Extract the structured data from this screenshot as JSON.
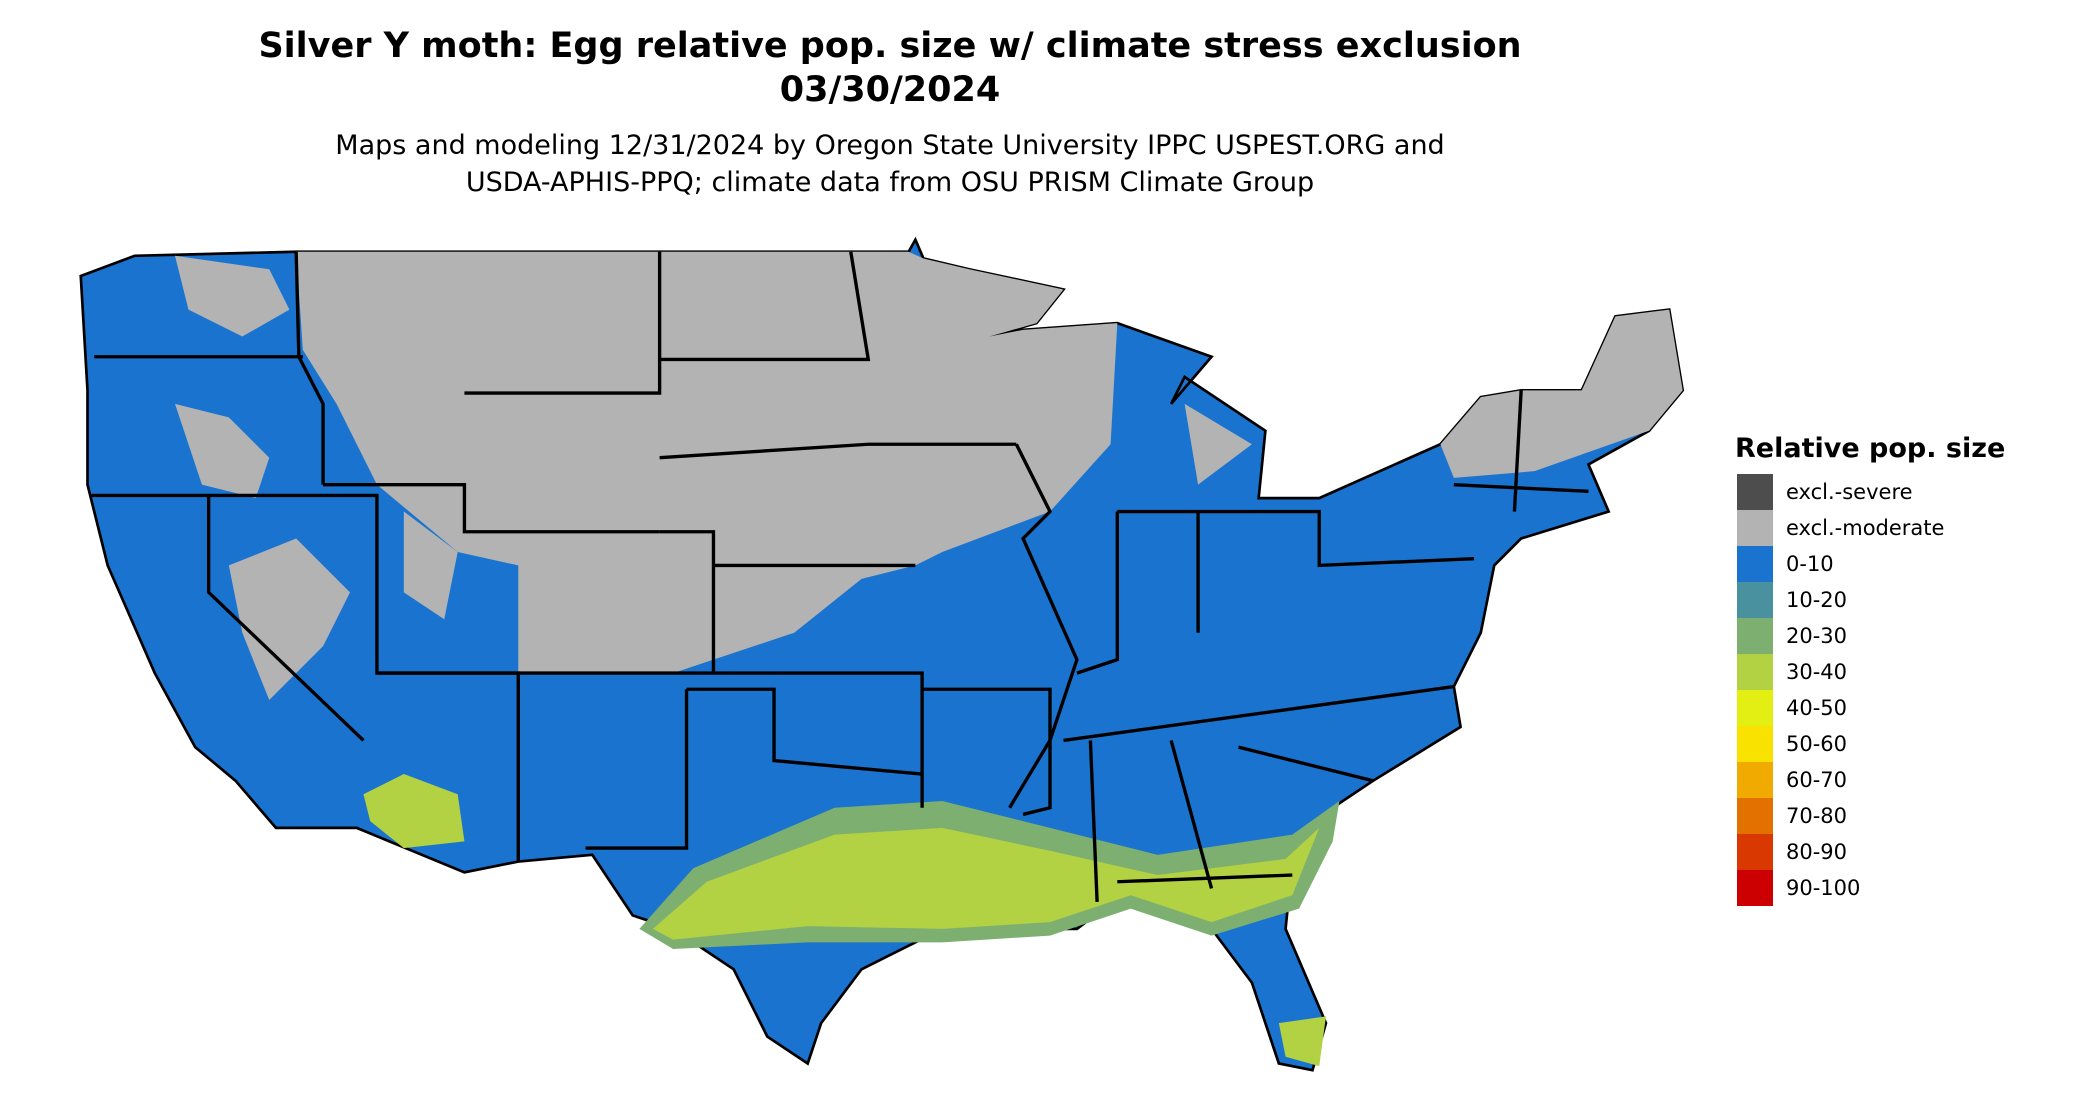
{
  "header": {
    "title": "Silver Y moth: Egg relative pop. size w/ climate stress exclusion",
    "date": "03/30/2024",
    "subtitle_line1": "Maps and modeling 12/31/2024 by Oregon State University IPPC USPEST.ORG and",
    "subtitle_line2": "USDA-APHIS-PPQ; climate data from OSU PRISM Climate Group"
  },
  "legend": {
    "title": "Relative pop. size",
    "items": [
      {
        "label": "excl.-severe",
        "color": "#4d4d4d"
      },
      {
        "label": "excl.-moderate",
        "color": "#b3b3b3"
      },
      {
        "label": "0-10",
        "color": "#1a74cf"
      },
      {
        "label": "10-20",
        "color": "#4a91a0"
      },
      {
        "label": "20-30",
        "color": "#7daf70"
      },
      {
        "label": "30-40",
        "color": "#b2d143"
      },
      {
        "label": "40-50",
        "color": "#e3ef12"
      },
      {
        "label": "50-60",
        "color": "#f9e100"
      },
      {
        "label": "60-70",
        "color": "#f0aa00"
      },
      {
        "label": "70-80",
        "color": "#e37100"
      },
      {
        "label": "80-90",
        "color": "#d93800"
      },
      {
        "label": "90-100",
        "color": "#cc0000"
      }
    ]
  }
}
